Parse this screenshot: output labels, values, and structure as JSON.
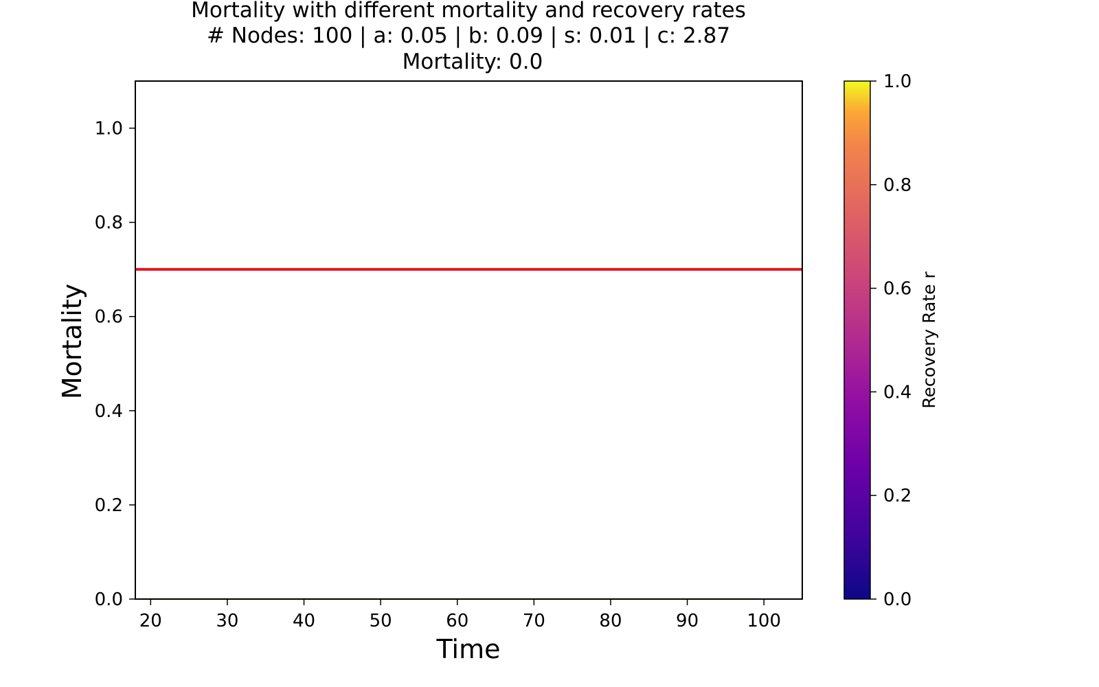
{
  "chart_data": {
    "type": "line",
    "title": {
      "line1": "Mortality with different mortality and recovery rates",
      "line2": "# Nodes: 100 | a: 0.05 | b: 0.09 | s: 0.01 | c: 2.87",
      "line3": "Mortality: 0.0"
    },
    "xlabel": "Time",
    "ylabel": "Mortality",
    "xlim": [
      18,
      105
    ],
    "ylim": [
      0,
      1.1
    ],
    "x_ticks": [
      20,
      30,
      40,
      50,
      60,
      70,
      80,
      90,
      100
    ],
    "y_ticks": [
      0.0,
      0.2,
      0.4,
      0.6,
      0.8,
      1.0
    ],
    "grid": false,
    "reference_line": {
      "y": 0.7,
      "color": "#e8141c"
    },
    "series": [
      {
        "color": "#f0e442",
        "x": [
          20,
          30,
          40,
          50,
          60,
          70,
          80,
          90,
          99
        ],
        "y": [
          0.0,
          0.0,
          0.0,
          0.0,
          0.0,
          0.0,
          0.0,
          0.0,
          0.0
        ]
      }
    ],
    "colorbar": {
      "label": "Recovery Rate r",
      "colormap": "plasma",
      "range": [
        0.0,
        1.0
      ],
      "ticks": [
        0.0,
        0.2,
        0.4,
        0.6,
        0.8,
        1.0
      ]
    }
  }
}
